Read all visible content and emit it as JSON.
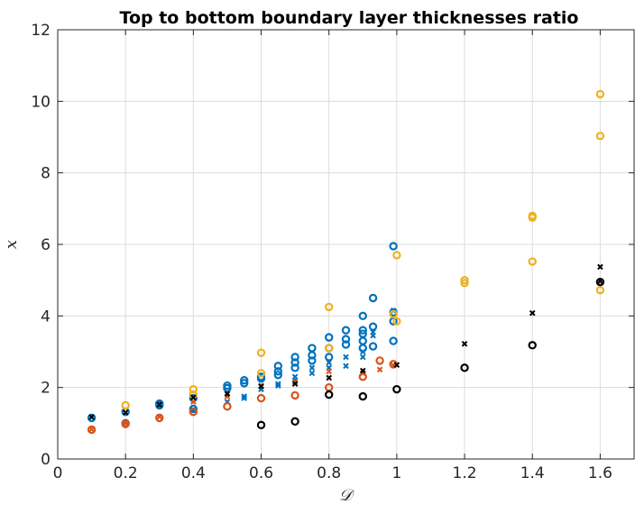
{
  "chart_data": {
    "type": "scatter",
    "title": "Top to bottom boundary layer thicknesses ratio",
    "xlabel": "𝒟",
    "ylabel": "x",
    "xlim": [
      0,
      1.7
    ],
    "ylim": [
      0,
      12
    ],
    "xticks": [
      0,
      0.2,
      0.4,
      0.6,
      0.8,
      1,
      1.2,
      1.4,
      1.6
    ],
    "xtick_labels": [
      "0",
      "0.2",
      "0.4",
      "0.6",
      "0.8",
      "1",
      "1.2",
      "1.4",
      "1.6"
    ],
    "yticks": [
      0,
      2,
      4,
      6,
      8,
      10,
      12
    ],
    "ytick_labels": [
      "0",
      "2",
      "4",
      "6",
      "8",
      "10",
      "12"
    ],
    "grid": true,
    "colors": {
      "blue": "#0072bd",
      "orange": "#d95319",
      "yellow": "#edb120",
      "black": "#000000"
    },
    "series": [
      {
        "color": "blue",
        "marker": "o",
        "points": [
          [
            0.1,
            1.15
          ],
          [
            0.2,
            1.32
          ],
          [
            0.2,
            1.0
          ],
          [
            0.3,
            1.55
          ],
          [
            0.3,
            1.5
          ],
          [
            0.4,
            1.7
          ],
          [
            0.4,
            1.4
          ],
          [
            0.5,
            2.05
          ],
          [
            0.5,
            1.98
          ],
          [
            0.55,
            2.2
          ],
          [
            0.55,
            2.12
          ],
          [
            0.6,
            2.3
          ],
          [
            0.6,
            2.25
          ],
          [
            0.65,
            2.6
          ],
          [
            0.65,
            2.45
          ],
          [
            0.65,
            2.35
          ],
          [
            0.7,
            2.85
          ],
          [
            0.7,
            2.7
          ],
          [
            0.7,
            2.55
          ],
          [
            0.75,
            3.1
          ],
          [
            0.75,
            2.9
          ],
          [
            0.75,
            2.75
          ],
          [
            0.8,
            3.4
          ],
          [
            0.8,
            3.1
          ],
          [
            0.8,
            2.85
          ],
          [
            0.85,
            3.6
          ],
          [
            0.85,
            3.35
          ],
          [
            0.85,
            3.2
          ],
          [
            0.9,
            4.0
          ],
          [
            0.9,
            3.6
          ],
          [
            0.9,
            3.5
          ],
          [
            0.9,
            3.3
          ],
          [
            0.9,
            3.1
          ],
          [
            0.93,
            4.5
          ],
          [
            0.93,
            3.7
          ],
          [
            0.93,
            3.15
          ],
          [
            0.99,
            5.95
          ],
          [
            0.99,
            4.1
          ],
          [
            0.99,
            3.85
          ],
          [
            0.99,
            3.3
          ]
        ]
      },
      {
        "color": "blue",
        "marker": "x",
        "points": [
          [
            0.2,
            1.02
          ],
          [
            0.4,
            1.38
          ],
          [
            0.5,
            1.6
          ],
          [
            0.55,
            1.75
          ],
          [
            0.55,
            1.7
          ],
          [
            0.6,
            1.95
          ],
          [
            0.65,
            2.1
          ],
          [
            0.65,
            2.05
          ],
          [
            0.7,
            2.3
          ],
          [
            0.7,
            2.2
          ],
          [
            0.75,
            2.55
          ],
          [
            0.75,
            2.4
          ],
          [
            0.8,
            2.7
          ],
          [
            0.8,
            2.55
          ],
          [
            0.85,
            2.85
          ],
          [
            0.85,
            2.6
          ],
          [
            0.9,
            3.0
          ],
          [
            0.9,
            2.85
          ],
          [
            0.93,
            3.55
          ],
          [
            0.93,
            3.45
          ],
          [
            0.99,
            4.15
          ]
        ]
      },
      {
        "color": "orange",
        "marker": "o",
        "points": [
          [
            0.1,
            0.82
          ],
          [
            0.2,
            0.98
          ],
          [
            0.3,
            1.15
          ],
          [
            0.4,
            1.32
          ],
          [
            0.5,
            1.47
          ],
          [
            0.6,
            1.7
          ],
          [
            0.7,
            1.78
          ],
          [
            0.8,
            2.0
          ],
          [
            0.9,
            2.3
          ],
          [
            0.95,
            2.75
          ],
          [
            0.99,
            2.65
          ]
        ]
      },
      {
        "color": "orange",
        "marker": "x",
        "points": [
          [
            0.1,
            0.83
          ],
          [
            0.2,
            1.0
          ],
          [
            0.3,
            1.18
          ],
          [
            0.4,
            1.6
          ],
          [
            0.5,
            1.75
          ],
          [
            0.6,
            2.05
          ],
          [
            0.7,
            2.15
          ],
          [
            0.8,
            2.45
          ],
          [
            0.9,
            2.4
          ],
          [
            0.95,
            2.5
          ],
          [
            0.99,
            2.62
          ]
        ]
      },
      {
        "color": "yellow",
        "marker": "o",
        "points": [
          [
            0.2,
            1.5
          ],
          [
            0.4,
            1.95
          ],
          [
            0.4,
            1.8
          ],
          [
            0.6,
            2.97
          ],
          [
            0.6,
            2.4
          ],
          [
            0.8,
            4.25
          ],
          [
            0.8,
            3.1
          ],
          [
            0.99,
            4.05
          ],
          [
            1.0,
            5.7
          ],
          [
            1.0,
            3.85
          ],
          [
            1.2,
            5.0
          ],
          [
            1.2,
            4.92
          ],
          [
            1.4,
            6.8
          ],
          [
            1.4,
            6.75
          ],
          [
            1.4,
            5.52
          ],
          [
            1.6,
            10.2
          ],
          [
            1.6,
            9.03
          ],
          [
            1.6,
            4.72
          ]
        ]
      },
      {
        "color": "black",
        "marker": "o",
        "points": [
          [
            0.6,
            0.95
          ],
          [
            0.7,
            1.05
          ],
          [
            0.8,
            1.8
          ],
          [
            0.9,
            1.75
          ],
          [
            1.0,
            1.95
          ],
          [
            1.2,
            2.55
          ],
          [
            1.4,
            3.18
          ],
          [
            1.6,
            4.95
          ]
        ]
      },
      {
        "color": "black",
        "marker": "x",
        "points": [
          [
            0.1,
            1.17
          ],
          [
            0.2,
            1.3
          ],
          [
            0.3,
            1.52
          ],
          [
            0.4,
            1.72
          ],
          [
            0.5,
            1.82
          ],
          [
            0.6,
            2.03
          ],
          [
            0.7,
            2.1
          ],
          [
            0.8,
            2.27
          ],
          [
            0.9,
            2.47
          ],
          [
            1.0,
            2.63
          ],
          [
            1.2,
            3.22
          ],
          [
            1.4,
            4.08
          ],
          [
            1.6,
            5.37
          ],
          [
            1.6,
            4.97
          ]
        ]
      }
    ]
  }
}
